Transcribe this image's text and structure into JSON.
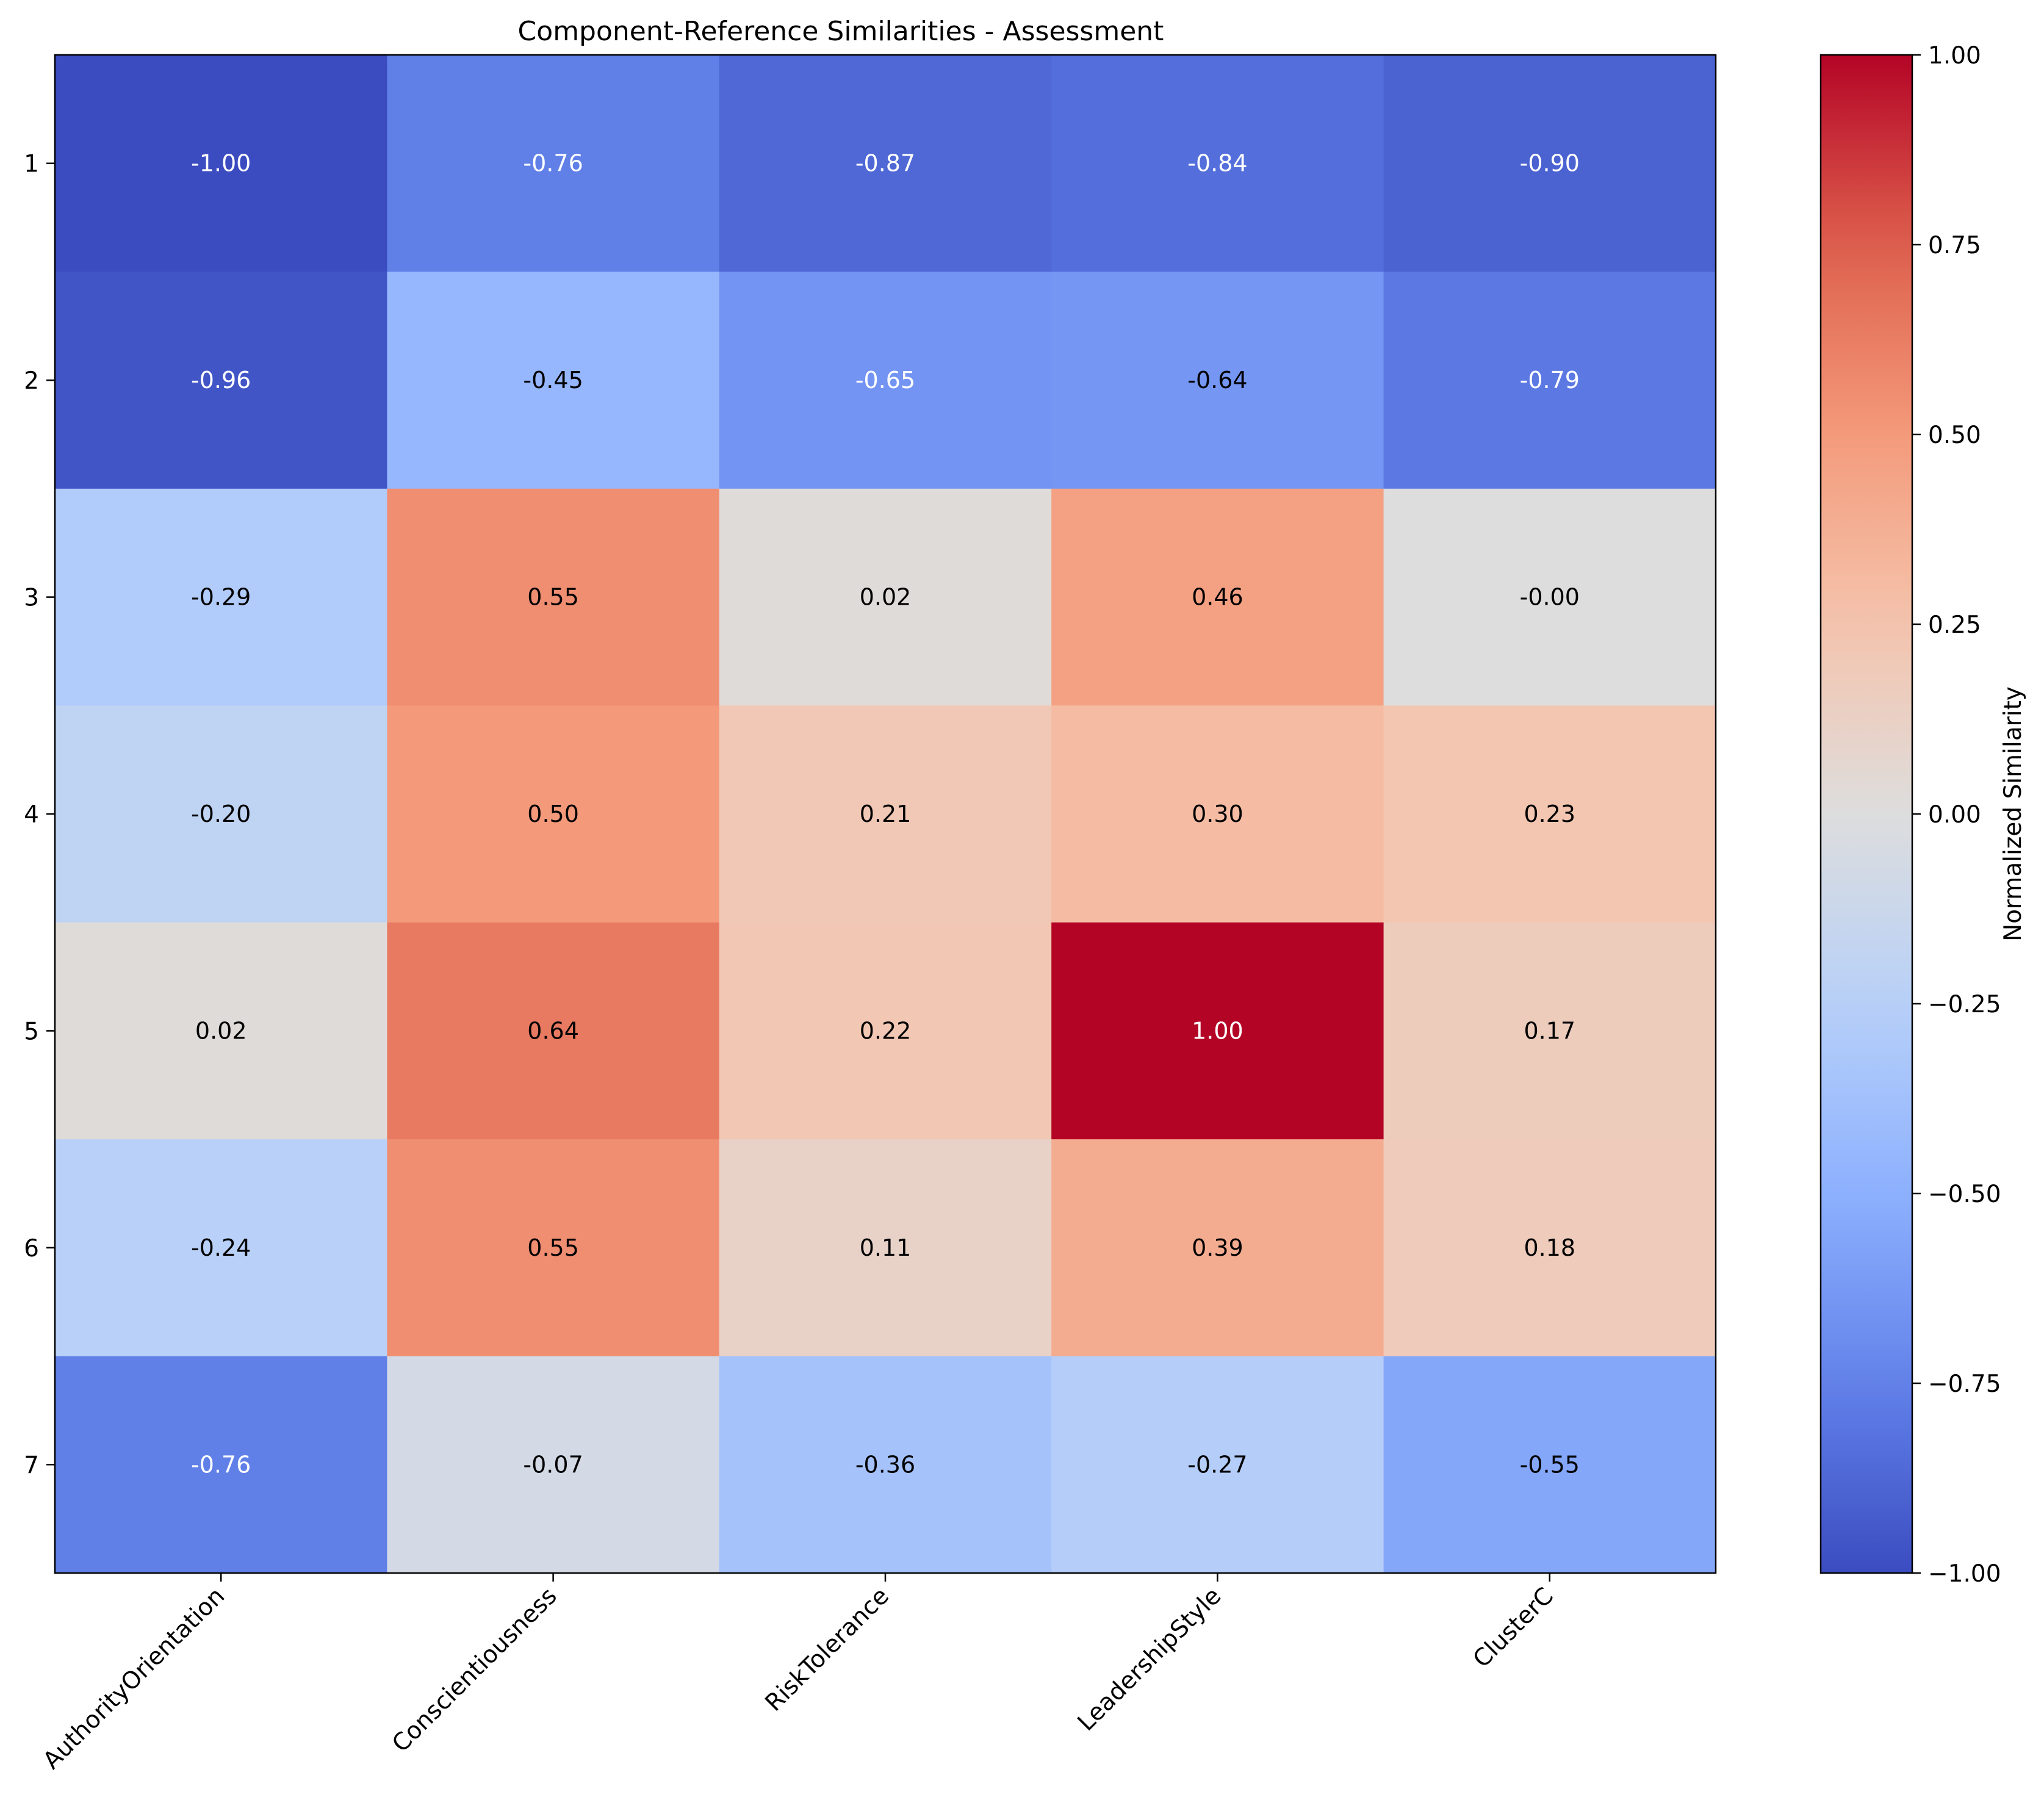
{
  "chart_data": {
    "type": "heatmap",
    "title": "Component-Reference Similarities - Assessment",
    "xlabel": "",
    "ylabel": "",
    "x_categories": [
      "AuthorityOrientation",
      "Conscientiousness",
      "RiskTolerance",
      "LeadershipStyle",
      "ClusterC"
    ],
    "y_categories": [
      "1",
      "2",
      "3",
      "4",
      "5",
      "6",
      "7"
    ],
    "values": [
      [
        -1.0,
        -0.76,
        -0.87,
        -0.84,
        -0.9
      ],
      [
        -0.96,
        -0.45,
        -0.65,
        -0.64,
        -0.79
      ],
      [
        -0.29,
        0.55,
        0.02,
        0.46,
        -0.0
      ],
      [
        -0.2,
        0.5,
        0.21,
        0.3,
        0.23
      ],
      [
        0.02,
        0.64,
        0.22,
        1.0,
        0.17
      ],
      [
        -0.24,
        0.55,
        0.11,
        0.39,
        0.18
      ],
      [
        -0.76,
        -0.07,
        -0.36,
        -0.27,
        -0.55
      ]
    ],
    "value_labels": [
      [
        "-1.00",
        "-0.76",
        "-0.87",
        "-0.84",
        "-0.90"
      ],
      [
        "-0.96",
        "-0.45",
        "-0.65",
        "-0.64",
        "-0.79"
      ],
      [
        "-0.29",
        "0.55",
        "0.02",
        "0.46",
        "-0.00"
      ],
      [
        "-0.20",
        "0.50",
        "0.21",
        "0.30",
        "0.23"
      ],
      [
        "0.02",
        "0.64",
        "0.22",
        "1.00",
        "0.17"
      ],
      [
        "-0.24",
        "0.55",
        "0.11",
        "0.39",
        "0.18"
      ],
      [
        "-0.76",
        "-0.07",
        "-0.36",
        "-0.27",
        "-0.55"
      ]
    ],
    "colormap": "coolwarm",
    "vmin": -1.0,
    "vmax": 1.0,
    "colorbar": {
      "label": "Normalized Similarity",
      "ticks": [
        -1.0,
        -0.75,
        -0.5,
        -0.25,
        0.0,
        0.25,
        0.5,
        0.75,
        1.0
      ],
      "tick_labels": [
        "−1.00",
        "−0.75",
        "−0.50",
        "−0.25",
        "0.00",
        "0.25",
        "0.50",
        "0.75",
        "1.00"
      ]
    },
    "grid": false
  }
}
